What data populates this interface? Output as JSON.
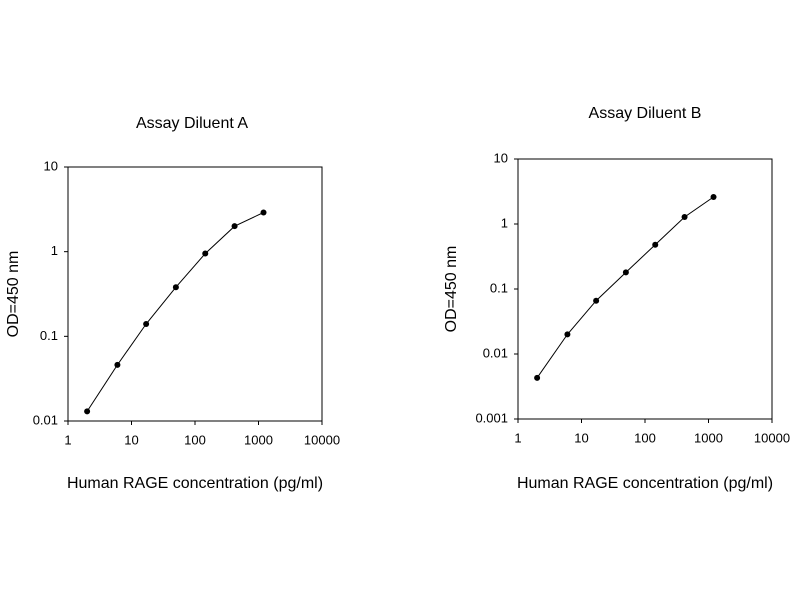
{
  "chart_data": [
    {
      "type": "line",
      "title": "Assay Diluent A",
      "x_label": "Human RAGE concentration (pg/ml)",
      "y_label": "OD=450 nm",
      "x": [
        2,
        6,
        17,
        50,
        145,
        420,
        1200
      ],
      "values": [
        0.013,
        0.046,
        0.14,
        0.38,
        0.95,
        2.0,
        2.9
      ],
      "color": "#000000",
      "xscale": "log",
      "yscale": "log",
      "xlim": [
        1,
        10000
      ],
      "xticks": [
        1,
        10,
        100,
        1000,
        10000
      ],
      "ylim": [
        0.01,
        10
      ],
      "yticks": [
        0.01,
        0.1,
        1,
        10
      ]
    },
    {
      "type": "line",
      "title": "Assay Diluent B",
      "x_label": "Human RAGE concentration (pg/ml)",
      "y_label": "OD=450 nm",
      "x": [
        2,
        6,
        17,
        50,
        145,
        420,
        1200
      ],
      "values": [
        0.0043,
        0.02,
        0.066,
        0.18,
        0.48,
        1.28,
        2.6
      ],
      "color": "#000000",
      "xscale": "log",
      "yscale": "log",
      "xlim": [
        1,
        10000
      ],
      "xticks": [
        1,
        10,
        100,
        1000,
        10000
      ],
      "ylim": [
        0.001,
        10
      ],
      "yticks": [
        0.001,
        0.01,
        0.1,
        1,
        10
      ]
    }
  ]
}
